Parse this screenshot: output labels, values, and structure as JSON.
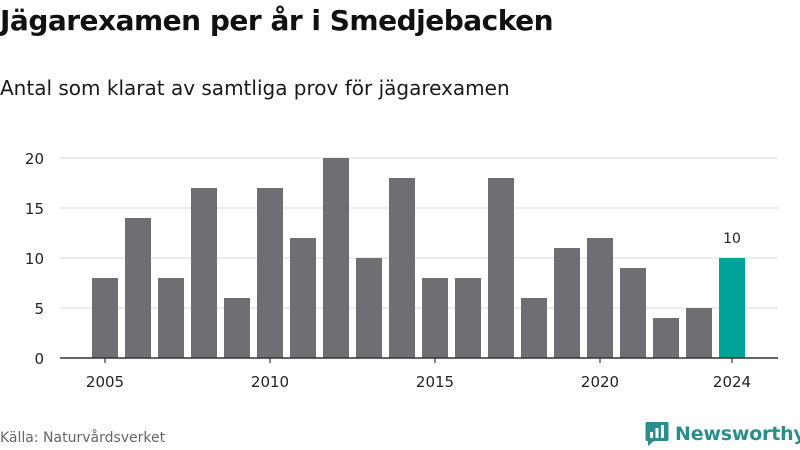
{
  "header": {
    "title": "Jägarexamen per år i Smedjebacken",
    "subtitle": "Antal som klarat av samtliga prov för jägarexamen"
  },
  "footer": {
    "source": "Källa: Naturvårdsverket",
    "brand": "Newsworthy",
    "brand_icon": "newsworthy-chart-bubble-icon"
  },
  "colors": {
    "bar": "#6f6e73",
    "highlight": "#00a398",
    "grid": "#d9d9d9",
    "axis": "#333333",
    "brand": "#2a8f8c"
  },
  "chart_data": {
    "type": "bar",
    "title": "Jägarexamen per år i Smedjebacken",
    "subtitle": "Antal som klarat av samtliga prov för jägarexamen",
    "xlabel": "",
    "ylabel": "",
    "categories": [
      2005,
      2006,
      2007,
      2008,
      2009,
      2010,
      2011,
      2012,
      2013,
      2014,
      2015,
      2016,
      2017,
      2018,
      2019,
      2020,
      2021,
      2022,
      2023,
      2024
    ],
    "values": [
      8,
      14,
      8,
      17,
      6,
      17,
      12,
      20,
      10,
      18,
      8,
      8,
      18,
      6,
      11,
      12,
      9,
      4,
      5,
      10
    ],
    "highlight": {
      "category": 2024,
      "value": 10,
      "label": "10"
    },
    "x_tick_labels": [
      "2005",
      "2010",
      "2015",
      "2020",
      "2024"
    ],
    "y_ticks": [
      0,
      5,
      10,
      15,
      20
    ],
    "ylim": [
      0,
      20
    ],
    "grid": true,
    "legend": "none"
  }
}
